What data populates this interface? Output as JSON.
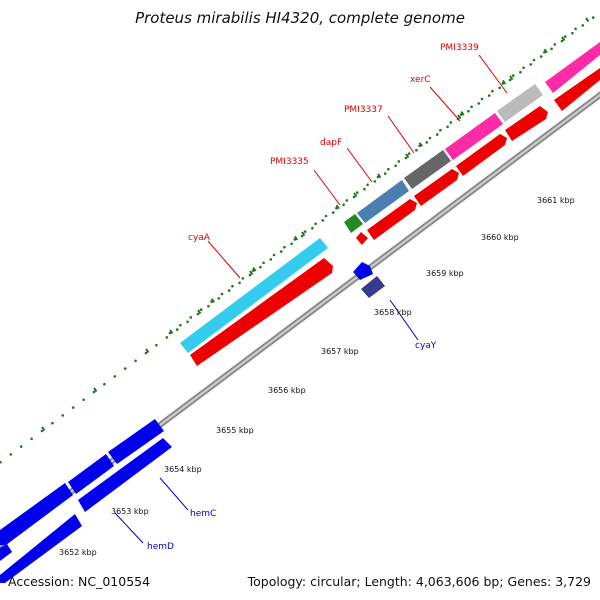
{
  "title": "Proteus mirabilis HI4320, complete genome",
  "footer": {
    "accession": "Accession: NC_010554",
    "summary": "Topology: circular; Length: 4,063,606 bp; Genes: 3,729"
  },
  "colors": {
    "forward_label": "#e00000",
    "reverse_label": "#0000cc",
    "cds": "#ff0000",
    "cds_reverse": "#0000ee",
    "tick": "#1a7a1a"
  },
  "ticks": [
    "3652 kbp",
    "3653 kbp",
    "3654 kbp",
    "3655 kbp",
    "3656 kbp",
    "3657 kbp",
    "3658 kbp",
    "3659 kbp",
    "3660 kbp",
    "3661 kbp"
  ],
  "genes_forward": [
    {
      "name": "cyaA",
      "color": "#33ccee"
    },
    {
      "name": "PMI3335",
      "color": "#228b22"
    },
    {
      "name": "dapF",
      "color": "#4a7fb0"
    },
    {
      "name": "PMI3337",
      "color": "#666666"
    },
    {
      "name": "xerC",
      "color": "#ff2aa8"
    },
    {
      "name": "PMI3339",
      "color": "#bbbbbb"
    }
  ],
  "genes_reverse": [
    {
      "name": "cyaY",
      "color": "#3a3a8c"
    },
    {
      "name": "hemC",
      "color": "#0000ee"
    },
    {
      "name": "hemD",
      "color": "#0000ee"
    }
  ]
}
